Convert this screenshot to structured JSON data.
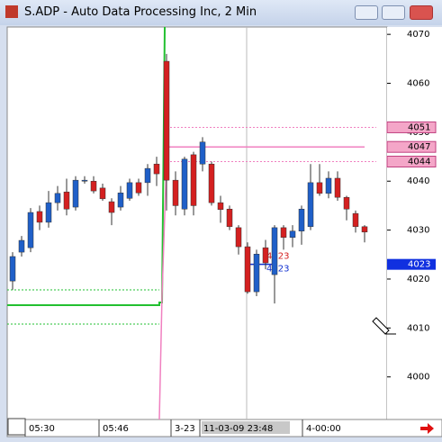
{
  "window": {
    "title": "S.ADP - Auto Data Processing Inc, 2 Min"
  },
  "chart_data": {
    "type": "candlestick",
    "ylim": [
      3991.3,
      4071.5
    ],
    "yticks": [
      4000,
      4010,
      4020,
      4030,
      4040,
      4050,
      4060,
      4070
    ],
    "up_color": "#1f5fc8",
    "down_color": "#d42020",
    "open": [
      4019.6,
      4025.5,
      4026.4,
      4033.8,
      4031.6,
      4035.6,
      4037.8,
      4034.7,
      4040,
      4040,
      4038.6,
      4035.8,
      4034.7,
      4036.5,
      4039.7,
      4039.7,
      4043.5,
      4064.5,
      4040.2,
      4034.3,
      4045.4,
      4043.5,
      4043.5,
      4035.6,
      4034.3,
      4030.5,
      4026.6,
      4017.4,
      4026.4,
      4020.9,
      4030.5,
      4028.5,
      4029.8,
      4030.7,
      4039.7,
      4037.5,
      4040.6,
      4036.7,
      4033.4,
      4030.7
    ],
    "high": [
      4025.5,
      4028.8,
      4034.5,
      4035,
      4038,
      4039,
      4040.5,
      4041,
      4041,
      4041,
      4039.5,
      4036.5,
      4039,
      4040.5,
      4040.5,
      4043.5,
      4045,
      4066,
      4042,
      4045,
      4046,
      4049,
      4044,
      4037,
      4035,
      4031,
      4027.5,
      4026,
      4028,
      4031,
      4031,
      4031,
      4035,
      4043.5,
      4043.5,
      4042,
      4042,
      4037,
      4034,
      4031
    ],
    "low": [
      4017.8,
      4024.6,
      4025.5,
      4030,
      4030.5,
      4034,
      4033,
      4034,
      4039.5,
      4037.5,
      4036,
      4031,
      4034,
      4036,
      4037,
      4037,
      4039,
      4034,
      4033,
      4033,
      4033,
      4042,
      4035,
      4031.5,
      4030,
      4025,
      4017,
      4016.5,
      4022,
      4015,
      4026,
      4026.5,
      4027,
      4030,
      4037,
      4036.5,
      4036,
      4032,
      4029.5,
      4027.5
    ],
    "close": [
      4024.6,
      4027.9,
      4033.6,
      4031.6,
      4035.6,
      4037.5,
      4034.3,
      4040.2,
      4040.2,
      4038,
      4036.4,
      4033.6,
      4037.6,
      4039.7,
      4037.6,
      4042.6,
      4041.5,
      4040.2,
      4035,
      4044.5,
      4035,
      4048,
      4035.6,
      4034.2,
      4030.7,
      4026.6,
      4017.4,
      4025.1,
      4023.3,
      4030.5,
      4028.5,
      4029.8,
      4034.3,
      4039.7,
      4037.5,
      4040.6,
      4036.7,
      4034.3,
      4030.7,
      4029.6
    ],
    "levels": [
      {
        "value": 4051,
        "label": "4051",
        "style": "dotted"
      },
      {
        "value": 4047,
        "label": "4047",
        "style": "solid"
      },
      {
        "value": 4044,
        "label": "4044",
        "style": "dotted"
      }
    ],
    "cursor": {
      "value": 4023,
      "label": "4023"
    },
    "x_labels": [
      "05:30",
      "05:46",
      "3-23",
      "11-03-09  23:48",
      "4-00:00"
    ]
  }
}
